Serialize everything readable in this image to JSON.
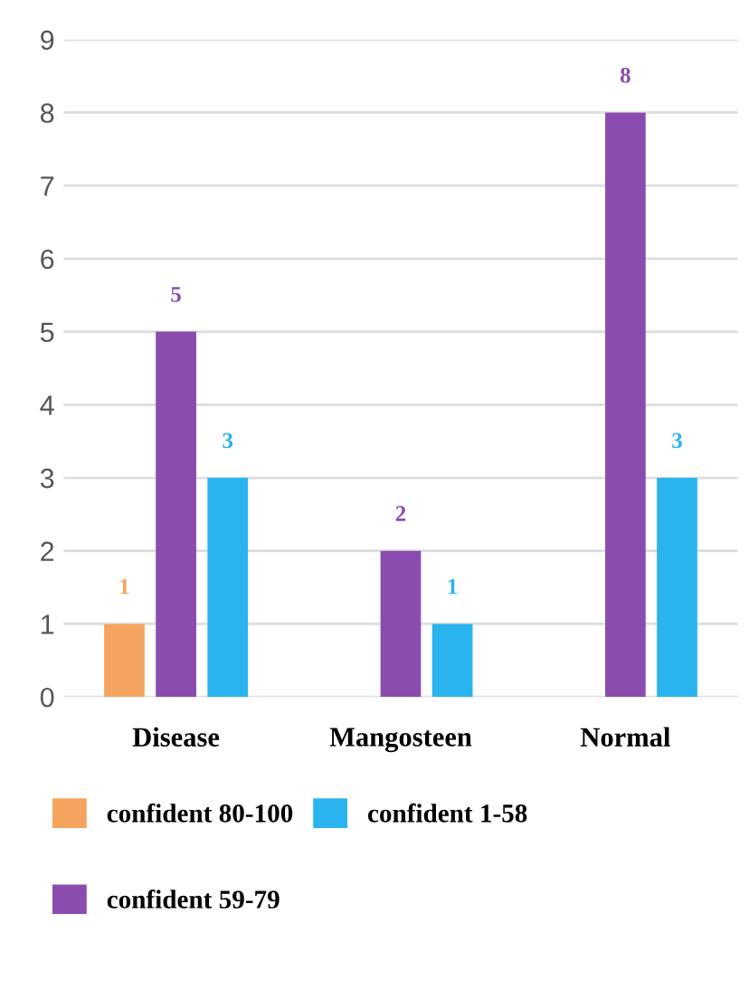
{
  "chart_data": {
    "type": "bar",
    "categories": [
      "Disease",
      "Mangosteen",
      "Normal"
    ],
    "series": [
      {
        "name": "confident 80-100",
        "color": "#f5a460",
        "values": [
          1,
          null,
          null
        ]
      },
      {
        "name": "confident 59-79",
        "color": "#8a4caf",
        "values": [
          5,
          2,
          8
        ]
      },
      {
        "name": "confident 1-58",
        "color": "#2ab4ef",
        "values": [
          3,
          1,
          3
        ]
      }
    ],
    "ylim": [
      0,
      9
    ],
    "yticks": [
      0,
      1,
      2,
      3,
      4,
      5,
      6,
      7,
      8,
      9
    ],
    "grid": "y",
    "legend": "bottom",
    "data_labels": true
  }
}
